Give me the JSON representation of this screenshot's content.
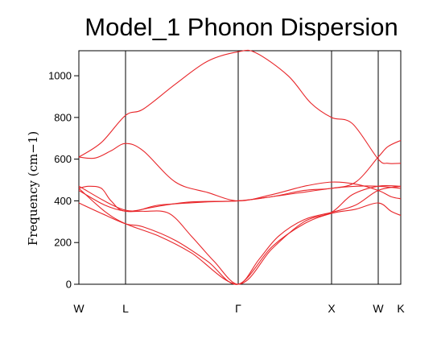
{
  "chart_data": {
    "type": "line",
    "title": "Model_1 Phonon Dispersion",
    "xlabel": "",
    "ylabel": "Frequency (cm−1)",
    "ylim": [
      0,
      1120
    ],
    "yticks": [
      0,
      200,
      400,
      600,
      800,
      1000
    ],
    "xlim": [
      0,
      1
    ],
    "high_symmetry_points": [
      {
        "label": "W",
        "x": 0.0
      },
      {
        "label": "L",
        "x": 0.145
      },
      {
        "label": "Γ",
        "x": 0.495
      },
      {
        "label": "X",
        "x": 0.785
      },
      {
        "label": "W",
        "x": 0.93
      },
      {
        "label": "K",
        "x": 1.0
      }
    ],
    "grid": false,
    "line_color": "#e8262a",
    "series": [
      {
        "values": [
          [
            0,
            610
          ],
          [
            0.05,
            605
          ],
          [
            0.1,
            640
          ],
          [
            0.145,
            675
          ],
          [
            0.2,
            640
          ],
          [
            0.3,
            490
          ],
          [
            0.4,
            440
          ],
          [
            0.495,
            400
          ],
          [
            0.6,
            430
          ],
          [
            0.7,
            470
          ],
          [
            0.785,
            490
          ],
          [
            0.86,
            480
          ],
          [
            0.93,
            450
          ],
          [
            0.97,
            420
          ],
          [
            1.0,
            410
          ]
        ]
      },
      {
        "values": [
          [
            0,
            610
          ],
          [
            0.07,
            680
          ],
          [
            0.145,
            810
          ],
          [
            0.2,
            840
          ],
          [
            0.3,
            960
          ],
          [
            0.4,
            1070
          ],
          [
            0.495,
            1115
          ],
          [
            0.55,
            1110
          ],
          [
            0.65,
            1000
          ],
          [
            0.72,
            870
          ],
          [
            0.785,
            800
          ],
          [
            0.85,
            770
          ],
          [
            0.93,
            600
          ],
          [
            0.96,
            580
          ],
          [
            1.0,
            580
          ]
        ]
      },
      {
        "values": [
          [
            0,
            460
          ],
          [
            0.03,
            470
          ],
          [
            0.07,
            460
          ],
          [
            0.1,
            400
          ],
          [
            0.145,
            350
          ],
          [
            0.25,
            375
          ],
          [
            0.35,
            395
          ],
          [
            0.495,
            400
          ],
          [
            0.6,
            420
          ],
          [
            0.7,
            450
          ],
          [
            0.785,
            460
          ],
          [
            0.86,
            490
          ],
          [
            0.93,
            610
          ],
          [
            0.96,
            660
          ],
          [
            1.0,
            690
          ]
        ]
      },
      {
        "values": [
          [
            0,
            470
          ],
          [
            0.145,
            355
          ],
          [
            0.25,
            380
          ],
          [
            0.4,
            395
          ],
          [
            0.495,
            400
          ],
          [
            0.6,
            420
          ],
          [
            0.785,
            460
          ],
          [
            0.86,
            470
          ],
          [
            0.93,
            470
          ],
          [
            1.0,
            460
          ]
        ]
      },
      {
        "values": [
          [
            0,
            450
          ],
          [
            0.08,
            380
          ],
          [
            0.145,
            350
          ],
          [
            0.2,
            350
          ],
          [
            0.28,
            340
          ],
          [
            0.35,
            230
          ],
          [
            0.42,
            110
          ],
          [
            0.495,
            0
          ],
          [
            0.56,
            120
          ],
          [
            0.62,
            230
          ],
          [
            0.7,
            310
          ],
          [
            0.785,
            345
          ],
          [
            0.86,
            380
          ],
          [
            0.93,
            450
          ],
          [
            1.0,
            470
          ]
        ]
      },
      {
        "values": [
          [
            0,
            390
          ],
          [
            0.07,
            340
          ],
          [
            0.145,
            290
          ],
          [
            0.2,
            275
          ],
          [
            0.3,
            210
          ],
          [
            0.4,
            110
          ],
          [
            0.495,
            0
          ],
          [
            0.6,
            180
          ],
          [
            0.7,
            290
          ],
          [
            0.785,
            340
          ],
          [
            0.86,
            360
          ],
          [
            0.93,
            390
          ],
          [
            0.97,
            350
          ],
          [
            1.0,
            330
          ]
        ]
      },
      {
        "values": [
          [
            0,
            460
          ],
          [
            0.08,
            350
          ],
          [
            0.145,
            290
          ],
          [
            0.25,
            230
          ],
          [
            0.35,
            150
          ],
          [
            0.495,
            0
          ],
          [
            0.6,
            170
          ],
          [
            0.7,
            300
          ],
          [
            0.785,
            345
          ],
          [
            0.85,
            430
          ],
          [
            0.93,
            470
          ],
          [
            1.0,
            470
          ]
        ]
      }
    ]
  }
}
